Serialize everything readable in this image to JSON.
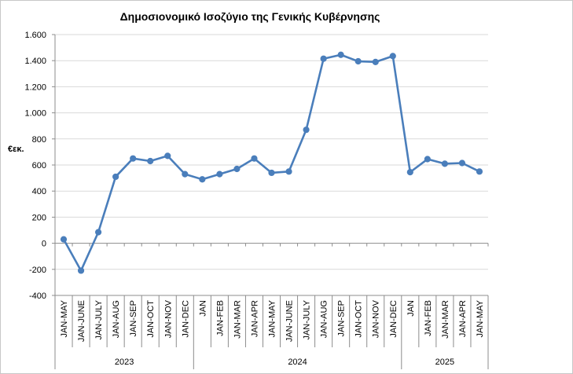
{
  "chart_data": {
    "type": "line",
    "title": "Δημοσιονομικό Ισοζύγιο της Γενικής Κυβέρνησης",
    "ylabel": "€εκ.",
    "xlabel": "",
    "ylim": [
      -400,
      1600
    ],
    "yticks": [
      -400,
      -200,
      0,
      200,
      400,
      600,
      800,
      1000,
      1200,
      1400,
      1600
    ],
    "ytick_labels": [
      "-400",
      "-200",
      "0",
      "200",
      "400",
      "600",
      "800",
      "1.000",
      "1.200",
      "1.400",
      "1.600"
    ],
    "grid": true,
    "legend": "none",
    "line_color": "#4a7ebb",
    "groups": [
      {
        "year": "2023",
        "categories": [
          "JAN-MAY",
          "JAN-JUNE",
          "JAN-JULY",
          "JAN-AUG",
          "JAN-SEP",
          "JAN-OCT",
          "JAN-NOV",
          "JAN-DEC"
        ]
      },
      {
        "year": "2024",
        "categories": [
          "JAN",
          "JAN-FEB",
          "JAN-MAR",
          "JAN-APR",
          "JAN-MAY",
          "JAN-JUNE",
          "JAN-JULY",
          "JAN-AUG",
          "JAN-SEP",
          "JAN-OCT",
          "JAN-NOV",
          "JAN-DEC"
        ]
      },
      {
        "year": "2025",
        "categories": [
          "JAN",
          "JAN-FEB",
          "JAN-MAR",
          "JAN-APR",
          "JAN-MAY"
        ]
      }
    ],
    "values": [
      30,
      -210,
      85,
      510,
      650,
      630,
      670,
      530,
      490,
      530,
      570,
      650,
      540,
      550,
      870,
      1415,
      1445,
      1395,
      1390,
      1435,
      545,
      645,
      610,
      615,
      550
    ]
  }
}
